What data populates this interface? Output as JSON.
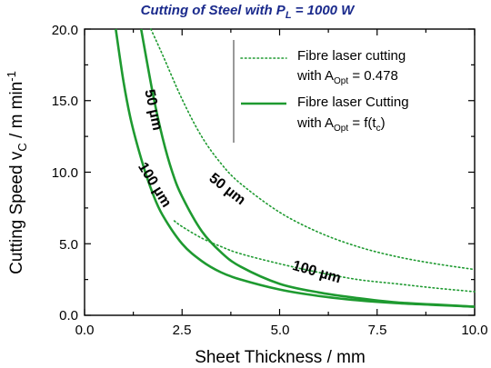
{
  "chart_data": {
    "type": "line",
    "title": {
      "pre": "Cutting of Steel with P",
      "sub": "L",
      "post": " = 1000 W"
    },
    "xlabel": "Sheet Thickness / mm",
    "ylabel": {
      "pre": "Cutting Speed v",
      "sub": "C",
      "mid": " / m min",
      "sup": "-1"
    },
    "xlim": [
      0.0,
      10.0
    ],
    "ylim": [
      0.0,
      20.0
    ],
    "x_ticks": [
      "0.0",
      "2.5",
      "5.0",
      "7.5",
      "10.0"
    ],
    "y_ticks": [
      "0.0",
      "5.0",
      "10.0",
      "15.0",
      "20.0"
    ],
    "grid": false,
    "legend_position": "top-right",
    "legend": [
      {
        "line1": "Fibre laser cutting",
        "line2_pre": "with A",
        "line2_sub": "Opt",
        "line2_post": " = 0.478",
        "style": "dotted"
      },
      {
        "line1": "Fibre laser Cutting",
        "line2_pre": "with A",
        "line2_sub": "Opt",
        "line2_post": " = f(t",
        "line2_sub2": "c",
        "line2_post2": ")",
        "style": "solid"
      }
    ],
    "series": [
      {
        "style": "dotted",
        "annotation": "50 µm",
        "x": [
          1.7,
          2.0,
          2.5,
          3.0,
          3.5,
          4.0,
          5.0,
          6.0,
          7.0,
          8.0,
          9.0,
          10.0
        ],
        "y": [
          20.0,
          18.2,
          15.1,
          12.5,
          10.6,
          9.2,
          7.2,
          5.8,
          4.8,
          4.1,
          3.6,
          3.2
        ]
      },
      {
        "style": "dotted",
        "annotation": "100 µm",
        "x": [
          2.3,
          2.5,
          3.0,
          3.5,
          4.0,
          5.0,
          6.0,
          7.0,
          8.0,
          9.0,
          10.0
        ],
        "y": [
          6.6,
          6.2,
          5.4,
          4.8,
          4.3,
          3.6,
          3.0,
          2.5,
          2.2,
          1.9,
          1.65
        ]
      },
      {
        "style": "solid",
        "annotation": "50 µm",
        "x": [
          1.45,
          1.75,
          2.0,
          2.25,
          2.5,
          3.0,
          3.5,
          4.0,
          5.0,
          6.0,
          7.0,
          8.0,
          9.0,
          10.0
        ],
        "y": [
          20.0,
          15.5,
          12.4,
          10.0,
          8.3,
          5.9,
          4.4,
          3.4,
          2.2,
          1.6,
          1.2,
          0.9,
          0.75,
          0.6
        ]
      },
      {
        "style": "solid",
        "annotation": "100 µm",
        "x": [
          0.8,
          1.0,
          1.2,
          1.5,
          1.75,
          2.0,
          2.5,
          3.0,
          3.5,
          4.0,
          5.0,
          6.0,
          7.0,
          8.0,
          9.0,
          10.0
        ],
        "y": [
          20.0,
          16.3,
          13.5,
          10.5,
          8.5,
          7.0,
          5.0,
          3.8,
          3.0,
          2.5,
          1.8,
          1.35,
          1.05,
          0.85,
          0.72,
          0.6
        ]
      }
    ],
    "annotations": [
      {
        "text": "50 µm"
      },
      {
        "text": "50 µm"
      },
      {
        "text": "100 µm"
      },
      {
        "text": "100 µm"
      }
    ],
    "colors": {
      "curve": "#1e9a30",
      "title": "#1a2a8c",
      "axis": "#000000"
    }
  }
}
